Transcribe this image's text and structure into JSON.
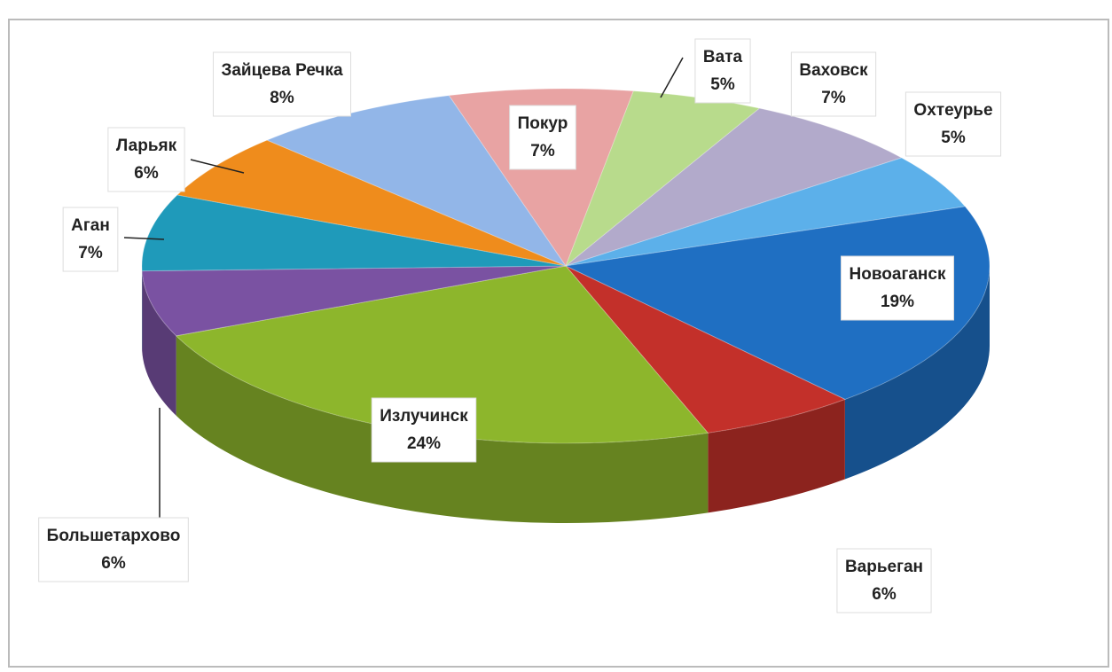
{
  "chart_data": {
    "type": "pie3d",
    "categories": [
      "Покур",
      "Вата",
      "Ваховск",
      "Охтеурье",
      "Новоаганск",
      "Варьеган",
      "Излучинск",
      "Большетархово",
      "Аган",
      "Ларьяк",
      "Зайцева Речка"
    ],
    "values": [
      7,
      5,
      7,
      5,
      19,
      6,
      24,
      6,
      7,
      6,
      8
    ],
    "value_labels": [
      "7%",
      "5%",
      "7%",
      "5%",
      "19%",
      "6%",
      "24%",
      "6%",
      "7%",
      "6%",
      "8%"
    ],
    "colors": [
      "#e8a3a3",
      "#b8db8c",
      "#b2aacb",
      "#5cb0ea",
      "#1f6fc2",
      "#c3302a",
      "#8db62c",
      "#7a52a2",
      "#1f9aba",
      "#ef8c1c",
      "#92b6e8"
    ]
  }
}
